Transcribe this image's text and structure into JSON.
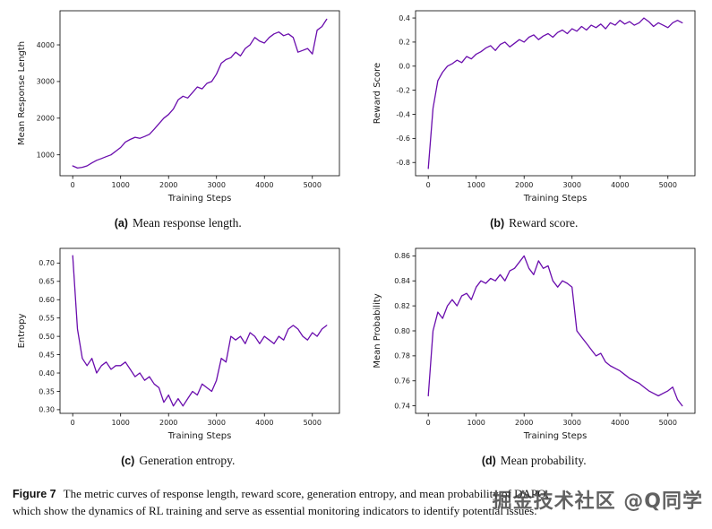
{
  "page": {
    "background": "#ffffff",
    "line_color": "#6a0dad"
  },
  "chart_data": [
    {
      "id": "a",
      "type": "line",
      "title": "",
      "xlabel": "Training Steps",
      "ylabel": "Mean Response Length",
      "line_color": "#6a0dad",
      "xlim": [
        -265,
        5565
      ],
      "ylim": [
        430,
        4930
      ],
      "xticks": [
        0,
        1000,
        2000,
        3000,
        4000,
        5000
      ],
      "xtick_labels": [
        "0",
        "1000",
        "2000",
        "3000",
        "4000",
        "5000"
      ],
      "yticks": [
        1000,
        2000,
        3000,
        4000
      ],
      "ytick_labels": [
        "1000",
        "2000",
        "3000",
        "4000"
      ],
      "x": [
        0,
        100,
        200,
        300,
        400,
        500,
        600,
        700,
        800,
        900,
        1000,
        1100,
        1200,
        1300,
        1400,
        1500,
        1600,
        1700,
        1800,
        1900,
        2000,
        2100,
        2200,
        2300,
        2400,
        2500,
        2600,
        2700,
        2800,
        2900,
        3000,
        3100,
        3200,
        3300,
        3400,
        3500,
        3600,
        3700,
        3800,
        3900,
        4000,
        4100,
        4200,
        4300,
        4400,
        4500,
        4600,
        4700,
        4800,
        4900,
        5000,
        5100,
        5200,
        5300
      ],
      "y": [
        700,
        640,
        660,
        700,
        780,
        850,
        900,
        950,
        1000,
        1100,
        1200,
        1350,
        1420,
        1480,
        1450,
        1500,
        1560,
        1700,
        1850,
        2000,
        2100,
        2250,
        2500,
        2600,
        2550,
        2700,
        2850,
        2800,
        2950,
        3000,
        3200,
        3500,
        3600,
        3650,
        3800,
        3700,
        3900,
        4000,
        4200,
        4100,
        4050,
        4200,
        4300,
        4350,
        4250,
        4300,
        4200,
        3800,
        3850,
        3900,
        3750,
        4400,
        4500,
        4700
      ]
    },
    {
      "id": "b",
      "type": "line",
      "title": "",
      "xlabel": "Training Steps",
      "ylabel": "Reward Score",
      "line_color": "#6a0dad",
      "xlim": [
        -265,
        5565
      ],
      "ylim": [
        -0.91,
        0.46
      ],
      "xticks": [
        0,
        1000,
        2000,
        3000,
        4000,
        5000
      ],
      "xtick_labels": [
        "0",
        "1000",
        "2000",
        "3000",
        "4000",
        "5000"
      ],
      "yticks": [
        -0.8,
        -0.6,
        -0.4,
        -0.2,
        0.0,
        0.2,
        0.4
      ],
      "ytick_labels": [
        "-0.8",
        "-0.6",
        "-0.4",
        "-0.2",
        "0.0",
        "0.2",
        "0.4"
      ],
      "x": [
        0,
        100,
        200,
        300,
        400,
        500,
        600,
        700,
        800,
        900,
        1000,
        1100,
        1200,
        1300,
        1400,
        1500,
        1600,
        1700,
        1800,
        1900,
        2000,
        2100,
        2200,
        2300,
        2400,
        2500,
        2600,
        2700,
        2800,
        2900,
        3000,
        3100,
        3200,
        3300,
        3400,
        3500,
        3600,
        3700,
        3800,
        3900,
        4000,
        4100,
        4200,
        4300,
        4400,
        4500,
        4600,
        4700,
        4800,
        4900,
        5000,
        5100,
        5200,
        5300
      ],
      "y": [
        -0.85,
        -0.35,
        -0.12,
        -0.05,
        0.0,
        0.02,
        0.05,
        0.03,
        0.08,
        0.06,
        0.1,
        0.12,
        0.15,
        0.17,
        0.13,
        0.18,
        0.2,
        0.16,
        0.19,
        0.22,
        0.2,
        0.24,
        0.26,
        0.22,
        0.25,
        0.27,
        0.24,
        0.28,
        0.3,
        0.27,
        0.31,
        0.29,
        0.33,
        0.3,
        0.34,
        0.32,
        0.35,
        0.31,
        0.36,
        0.34,
        0.38,
        0.35,
        0.37,
        0.34,
        0.36,
        0.4,
        0.37,
        0.33,
        0.36,
        0.34,
        0.32,
        0.36,
        0.38,
        0.36
      ]
    },
    {
      "id": "c",
      "type": "line",
      "title": "",
      "xlabel": "Training Steps",
      "ylabel": "Entropy",
      "line_color": "#6a0dad",
      "xlim": [
        -265,
        5565
      ],
      "ylim": [
        0.29,
        0.74
      ],
      "xticks": [
        0,
        1000,
        2000,
        3000,
        4000,
        5000
      ],
      "xtick_labels": [
        "0",
        "1000",
        "2000",
        "3000",
        "4000",
        "5000"
      ],
      "yticks": [
        0.3,
        0.35,
        0.4,
        0.45,
        0.5,
        0.55,
        0.6,
        0.65,
        0.7
      ],
      "ytick_labels": [
        "0.30",
        "0.35",
        "0.40",
        "0.45",
        "0.50",
        "0.55",
        "0.60",
        "0.65",
        "0.70"
      ],
      "x": [
        0,
        100,
        200,
        300,
        400,
        500,
        600,
        700,
        800,
        900,
        1000,
        1100,
        1200,
        1300,
        1400,
        1500,
        1600,
        1700,
        1800,
        1900,
        2000,
        2100,
        2200,
        2300,
        2400,
        2500,
        2600,
        2700,
        2800,
        2900,
        3000,
        3100,
        3200,
        3300,
        3400,
        3500,
        3600,
        3700,
        3800,
        3900,
        4000,
        4100,
        4200,
        4300,
        4400,
        4500,
        4600,
        4700,
        4800,
        4900,
        5000,
        5100,
        5200,
        5300
      ],
      "y": [
        0.72,
        0.52,
        0.44,
        0.42,
        0.44,
        0.4,
        0.42,
        0.43,
        0.41,
        0.42,
        0.42,
        0.43,
        0.41,
        0.39,
        0.4,
        0.38,
        0.39,
        0.37,
        0.36,
        0.32,
        0.34,
        0.31,
        0.33,
        0.31,
        0.33,
        0.35,
        0.34,
        0.37,
        0.36,
        0.35,
        0.38,
        0.44,
        0.43,
        0.5,
        0.49,
        0.5,
        0.48,
        0.51,
        0.5,
        0.48,
        0.5,
        0.49,
        0.48,
        0.5,
        0.49,
        0.52,
        0.53,
        0.52,
        0.5,
        0.49,
        0.51,
        0.5,
        0.52,
        0.53
      ]
    },
    {
      "id": "d",
      "type": "line",
      "title": "",
      "xlabel": "Training Steps",
      "ylabel": "Mean Probability",
      "line_color": "#6a0dad",
      "xlim": [
        -265,
        5565
      ],
      "ylim": [
        0.734,
        0.866
      ],
      "xticks": [
        0,
        1000,
        2000,
        3000,
        4000,
        5000
      ],
      "xtick_labels": [
        "0",
        "1000",
        "2000",
        "3000",
        "4000",
        "5000"
      ],
      "yticks": [
        0.74,
        0.76,
        0.78,
        0.8,
        0.82,
        0.84,
        0.86
      ],
      "ytick_labels": [
        "0.74",
        "0.76",
        "0.78",
        "0.80",
        "0.82",
        "0.84",
        "0.86"
      ],
      "x": [
        0,
        100,
        200,
        300,
        400,
        500,
        600,
        700,
        800,
        900,
        1000,
        1100,
        1200,
        1300,
        1400,
        1500,
        1600,
        1700,
        1800,
        1900,
        2000,
        2100,
        2200,
        2300,
        2400,
        2500,
        2600,
        2700,
        2800,
        2900,
        3000,
        3100,
        3200,
        3300,
        3400,
        3500,
        3600,
        3700,
        3800,
        3900,
        4000,
        4100,
        4200,
        4300,
        4400,
        4500,
        4600,
        4700,
        4800,
        4900,
        5000,
        5100,
        5200,
        5300
      ],
      "y": [
        0.748,
        0.8,
        0.815,
        0.81,
        0.82,
        0.825,
        0.82,
        0.828,
        0.83,
        0.825,
        0.835,
        0.84,
        0.838,
        0.842,
        0.84,
        0.845,
        0.84,
        0.848,
        0.85,
        0.855,
        0.86,
        0.85,
        0.845,
        0.856,
        0.85,
        0.852,
        0.84,
        0.835,
        0.84,
        0.838,
        0.835,
        0.8,
        0.795,
        0.79,
        0.785,
        0.78,
        0.782,
        0.775,
        0.772,
        0.77,
        0.768,
        0.765,
        0.762,
        0.76,
        0.758,
        0.755,
        0.752,
        0.75,
        0.748,
        0.75,
        0.752,
        0.755,
        0.745,
        0.74
      ]
    }
  ],
  "subfigures": [
    {
      "tag": "(a)",
      "text": "Mean response length."
    },
    {
      "tag": "(b)",
      "text": "Reward score."
    },
    {
      "tag": "(c)",
      "text": "Generation entropy."
    },
    {
      "tag": "(d)",
      "text": "Mean probability."
    }
  ],
  "caption": {
    "label": "Figure 7",
    "line1": "The metric curves of response length, reward score, generation entropy, and mean probability of DAPO,",
    "line2": "which show the dynamics of RL training and serve as essential monitoring indicators to identify potential issues."
  },
  "watermark": {
    "text": "掘金技术社区 @Q同学",
    "color": "#3f3f3f"
  }
}
